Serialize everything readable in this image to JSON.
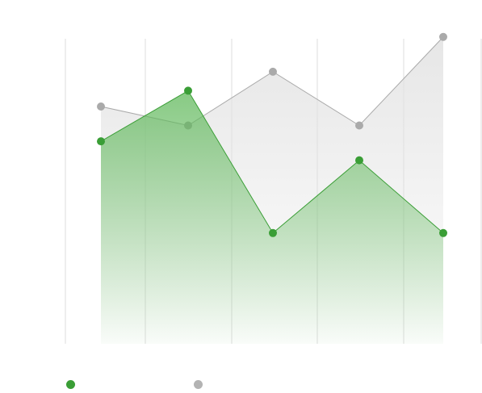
{
  "chart_data": {
    "type": "area",
    "x": [
      "",
      "",
      "",
      "",
      ""
    ],
    "ylim": [
      0,
      100
    ],
    "grid": true,
    "legend_placement": "bottom-left",
    "series": [
      {
        "name": "",
        "color": "#3a9e36",
        "fill_color": "#5fb85a",
        "values": [
          64,
          80,
          35,
          58,
          35
        ]
      },
      {
        "name": "",
        "color": "#aaaaaa",
        "fill_color": "#e2e2e2",
        "values": [
          75,
          69,
          86,
          69,
          97
        ]
      }
    ]
  },
  "legend": {
    "items": [
      {
        "label": "",
        "color": "#3a9e36"
      },
      {
        "label": "",
        "color": "#b3b3b3"
      }
    ]
  }
}
